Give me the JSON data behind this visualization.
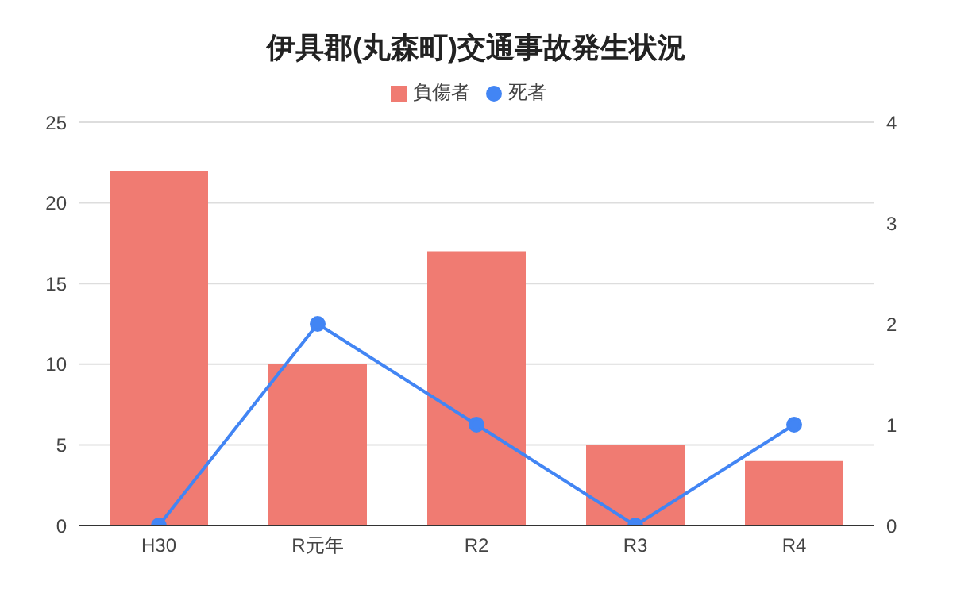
{
  "chart_data": {
    "type": "bar",
    "title": "伊具郡(丸森町)交通事故発生状況",
    "categories": [
      "H30",
      "R元年",
      "R2",
      "R3",
      "R4"
    ],
    "series": [
      {
        "name": "負傷者",
        "color": "#f07b72",
        "values": [
          22,
          10,
          17,
          5,
          4
        ]
      },
      {
        "name": "死者",
        "type": "line",
        "axis": "y2",
        "color": "#4285f4",
        "values": [
          0,
          2,
          1,
          0,
          1
        ]
      }
    ],
    "ylim": [
      0,
      25
    ],
    "yticks": [
      0,
      5,
      10,
      15,
      20,
      25
    ],
    "y2lim": [
      0,
      4
    ],
    "y2ticks": [
      0,
      1,
      2,
      3,
      4
    ],
    "grid": "y",
    "legend": "top",
    "marker": "circle",
    "line_style": "solid"
  }
}
